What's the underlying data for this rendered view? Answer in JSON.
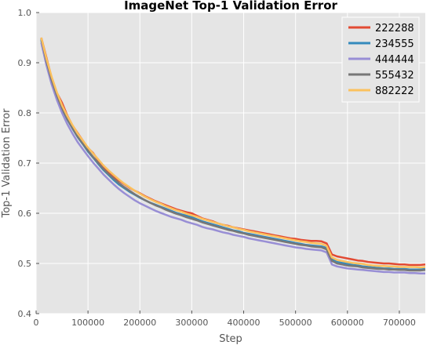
{
  "chart_data": {
    "type": "line",
    "title": "ImageNet Top-1 Validation Error",
    "xlabel": "Step",
    "ylabel": "Top-1 Validation Error",
    "xlim": [
      0,
      750000
    ],
    "ylim": [
      0.4,
      1.0
    ],
    "x_ticks": [
      0,
      100000,
      200000,
      300000,
      400000,
      500000,
      600000,
      700000
    ],
    "y_ticks": [
      0.4,
      0.5,
      0.6,
      0.7,
      0.8,
      0.9,
      1.0
    ],
    "x_tick_labels": [
      "0",
      "100000",
      "200000",
      "300000",
      "400000",
      "500000",
      "600000",
      "700000"
    ],
    "y_tick_labels": [
      "0.4",
      "0.5",
      "0.6",
      "0.7",
      "0.8",
      "0.9",
      "1.0"
    ],
    "grid": true,
    "legend_position": "top-right",
    "x": [
      10000,
      20000,
      30000,
      40000,
      50000,
      60000,
      70000,
      80000,
      90000,
      100000,
      110000,
      120000,
      130000,
      140000,
      150000,
      160000,
      170000,
      180000,
      190000,
      200000,
      210000,
      220000,
      230000,
      240000,
      250000,
      260000,
      270000,
      280000,
      290000,
      300000,
      310000,
      320000,
      330000,
      340000,
      350000,
      360000,
      370000,
      380000,
      390000,
      400000,
      410000,
      420000,
      430000,
      440000,
      450000,
      460000,
      470000,
      480000,
      490000,
      500000,
      510000,
      520000,
      530000,
      540000,
      550000,
      560000,
      570000,
      580000,
      590000,
      600000,
      610000,
      620000,
      630000,
      640000,
      650000,
      660000,
      670000,
      680000,
      690000,
      700000,
      710000,
      720000,
      730000,
      740000,
      750000
    ],
    "series": [
      {
        "name": "222288",
        "color": "#E24A33",
        "values": [
          0.95,
          0.91,
          0.87,
          0.84,
          0.82,
          0.795,
          0.775,
          0.76,
          0.745,
          0.73,
          0.72,
          0.705,
          0.69,
          0.68,
          0.672,
          0.665,
          0.658,
          0.651,
          0.645,
          0.64,
          0.634,
          0.629,
          0.624,
          0.62,
          0.616,
          0.612,
          0.608,
          0.605,
          0.602,
          0.6,
          0.595,
          0.59,
          0.587,
          0.584,
          0.58,
          0.577,
          0.575,
          0.572,
          0.57,
          0.568,
          0.566,
          0.564,
          0.562,
          0.56,
          0.558,
          0.556,
          0.554,
          0.552,
          0.55,
          0.549,
          0.547,
          0.546,
          0.545,
          0.545,
          0.544,
          0.54,
          0.518,
          0.514,
          0.512,
          0.51,
          0.508,
          0.506,
          0.505,
          0.503,
          0.502,
          0.501,
          0.5,
          0.5,
          0.499,
          0.498,
          0.498,
          0.497,
          0.497,
          0.497,
          0.498
        ]
      },
      {
        "name": "234555",
        "color": "#348ABD",
        "values": [
          0.945,
          0.9,
          0.862,
          0.833,
          0.808,
          0.787,
          0.769,
          0.752,
          0.738,
          0.723,
          0.711,
          0.698,
          0.686,
          0.676,
          0.666,
          0.657,
          0.65,
          0.643,
          0.637,
          0.631,
          0.626,
          0.621,
          0.617,
          0.613,
          0.609,
          0.605,
          0.601,
          0.598,
          0.595,
          0.592,
          0.588,
          0.584,
          0.581,
          0.578,
          0.575,
          0.572,
          0.569,
          0.566,
          0.564,
          0.561,
          0.559,
          0.557,
          0.555,
          0.553,
          0.551,
          0.549,
          0.547,
          0.545,
          0.543,
          0.541,
          0.539,
          0.537,
          0.536,
          0.535,
          0.534,
          0.531,
          0.508,
          0.503,
          0.501,
          0.499,
          0.497,
          0.496,
          0.494,
          0.493,
          0.492,
          0.491,
          0.49,
          0.49,
          0.489,
          0.489,
          0.489,
          0.488,
          0.488,
          0.488,
          0.489
        ]
      },
      {
        "name": "444444",
        "color": "#988ED5",
        "values": [
          0.94,
          0.895,
          0.857,
          0.826,
          0.8,
          0.778,
          0.759,
          0.742,
          0.728,
          0.714,
          0.701,
          0.689,
          0.677,
          0.667,
          0.657,
          0.648,
          0.64,
          0.633,
          0.626,
          0.62,
          0.615,
          0.61,
          0.605,
          0.601,
          0.597,
          0.593,
          0.59,
          0.587,
          0.583,
          0.58,
          0.577,
          0.573,
          0.57,
          0.568,
          0.565,
          0.562,
          0.56,
          0.557,
          0.555,
          0.553,
          0.55,
          0.548,
          0.546,
          0.544,
          0.542,
          0.54,
          0.538,
          0.536,
          0.534,
          0.532,
          0.531,
          0.529,
          0.528,
          0.527,
          0.526,
          0.522,
          0.498,
          0.494,
          0.492,
          0.49,
          0.489,
          0.488,
          0.487,
          0.486,
          0.485,
          0.484,
          0.483,
          0.483,
          0.482,
          0.482,
          0.482,
          0.481,
          0.481,
          0.48,
          0.48
        ]
      },
      {
        "name": "555432",
        "color": "#777777",
        "values": [
          0.948,
          0.903,
          0.866,
          0.835,
          0.809,
          0.788,
          0.77,
          0.753,
          0.739,
          0.725,
          0.712,
          0.7,
          0.688,
          0.678,
          0.669,
          0.66,
          0.652,
          0.645,
          0.638,
          0.632,
          0.626,
          0.621,
          0.616,
          0.612,
          0.607,
          0.603,
          0.599,
          0.596,
          0.592,
          0.589,
          0.586,
          0.582,
          0.579,
          0.576,
          0.573,
          0.57,
          0.567,
          0.565,
          0.562,
          0.56,
          0.557,
          0.555,
          0.553,
          0.551,
          0.549,
          0.547,
          0.545,
          0.543,
          0.541,
          0.539,
          0.537,
          0.536,
          0.534,
          0.533,
          0.532,
          0.528,
          0.505,
          0.5,
          0.498,
          0.496,
          0.495,
          0.494,
          0.492,
          0.491,
          0.49,
          0.489,
          0.489,
          0.488,
          0.488,
          0.487,
          0.487,
          0.486,
          0.486,
          0.486,
          0.487
        ]
      },
      {
        "name": "882222",
        "color": "#FBC15E",
        "values": [
          0.95,
          0.908,
          0.872,
          0.841,
          0.815,
          0.794,
          0.776,
          0.759,
          0.745,
          0.731,
          0.719,
          0.707,
          0.695,
          0.685,
          0.676,
          0.667,
          0.659,
          0.652,
          0.645,
          0.639,
          0.633,
          0.628,
          0.623,
          0.619,
          0.614,
          0.61,
          0.606,
          0.603,
          0.599,
          0.596,
          0.593,
          0.589,
          0.586,
          0.583,
          0.58,
          0.577,
          0.574,
          0.572,
          0.569,
          0.567,
          0.564,
          0.562,
          0.56,
          0.558,
          0.556,
          0.554,
          0.552,
          0.55,
          0.548,
          0.546,
          0.544,
          0.543,
          0.541,
          0.54,
          0.539,
          0.535,
          0.512,
          0.507,
          0.505,
          0.503,
          0.501,
          0.5,
          0.499,
          0.497,
          0.496,
          0.495,
          0.495,
          0.494,
          0.494,
          0.493,
          0.493,
          0.493,
          0.493,
          0.492,
          0.493
        ]
      }
    ]
  },
  "style": {
    "plot_background": "#E5E5E5",
    "grid_color": "#FFFFFF",
    "tick_color": "#555555"
  }
}
